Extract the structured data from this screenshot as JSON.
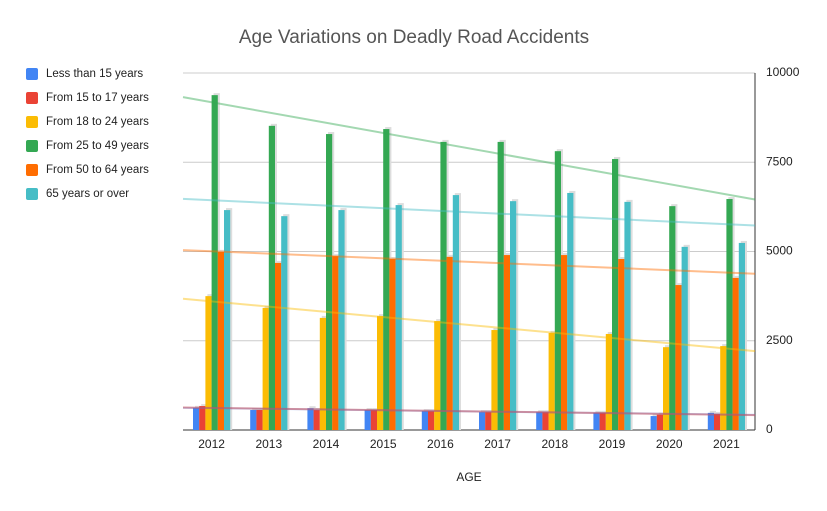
{
  "chart_data": {
    "type": "bar",
    "title": "Age Variations on Deadly Road Accidents",
    "x_label": "AGE",
    "categories": [
      "2012",
      "2013",
      "2014",
      "2015",
      "2016",
      "2017",
      "2018",
      "2019",
      "2020",
      "2021"
    ],
    "series": [
      {
        "name": "Less than 15 years",
        "color": "#4285f4",
        "values": [
          620,
          560,
          610,
          560,
          530,
          500,
          500,
          480,
          390,
          480
        ]
      },
      {
        "name": "From 15 to 17 years",
        "color": "#ea4335",
        "values": [
          670,
          560,
          560,
          560,
          530,
          500,
          500,
          480,
          430,
          450
        ]
      },
      {
        "name": "From 18 to 24 years",
        "color": "#fbbc04",
        "values": [
          3750,
          3420,
          3140,
          3190,
          3050,
          2800,
          2720,
          2690,
          2320,
          2350
        ]
      },
      {
        "name": "From 25 to 49 years",
        "color": "#34a853",
        "values": [
          9380,
          8520,
          8290,
          8430,
          8070,
          8070,
          7810,
          7590,
          6270,
          6470
        ]
      },
      {
        "name": "From 50 to 64 years",
        "color": "#ff6d01",
        "values": [
          4990,
          4680,
          4870,
          4790,
          4850,
          4900,
          4900,
          4790,
          4060,
          4260
        ]
      },
      {
        "name": "65 years or over",
        "color": "#46bdc6",
        "values": [
          6160,
          5990,
          6160,
          6300,
          6580,
          6410,
          6640,
          6390,
          5130,
          5240
        ]
      }
    ],
    "ylim": [
      0,
      10000
    ],
    "yticks": [
      0,
      2500,
      5000,
      7500,
      10000
    ],
    "grid": true,
    "trendlines": true,
    "legend": "left"
  }
}
